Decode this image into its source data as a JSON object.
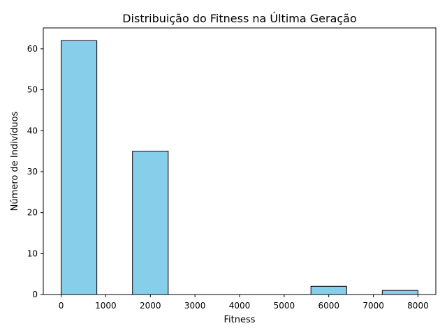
{
  "chart_data": {
    "type": "bar",
    "title": "Distribuição do Fitness na Última Geração",
    "xlabel": "Fitness",
    "ylabel": "Número de Indivíduos",
    "bins": [
      {
        "x_start": 0,
        "x_end": 800,
        "count": 62
      },
      {
        "x_start": 800,
        "x_end": 1600,
        "count": 0
      },
      {
        "x_start": 1600,
        "x_end": 2400,
        "count": 35
      },
      {
        "x_start": 2400,
        "x_end": 3200,
        "count": 0
      },
      {
        "x_start": 3200,
        "x_end": 4000,
        "count": 0
      },
      {
        "x_start": 4000,
        "x_end": 4800,
        "count": 0
      },
      {
        "x_start": 4800,
        "x_end": 5600,
        "count": 0
      },
      {
        "x_start": 5600,
        "x_end": 6400,
        "count": 2
      },
      {
        "x_start": 6400,
        "x_end": 7200,
        "count": 0
      },
      {
        "x_start": 7200,
        "x_end": 8000,
        "count": 1
      }
    ],
    "xlim": [
      -400,
      8400
    ],
    "ylim": [
      0,
      65.1
    ],
    "xticks": [
      0,
      1000,
      2000,
      3000,
      4000,
      5000,
      6000,
      7000,
      8000
    ],
    "yticks": [
      0,
      10,
      20,
      30,
      40,
      50,
      60
    ],
    "grid": false,
    "bar_color": "#87ceeb",
    "edge_color": "#000000"
  }
}
